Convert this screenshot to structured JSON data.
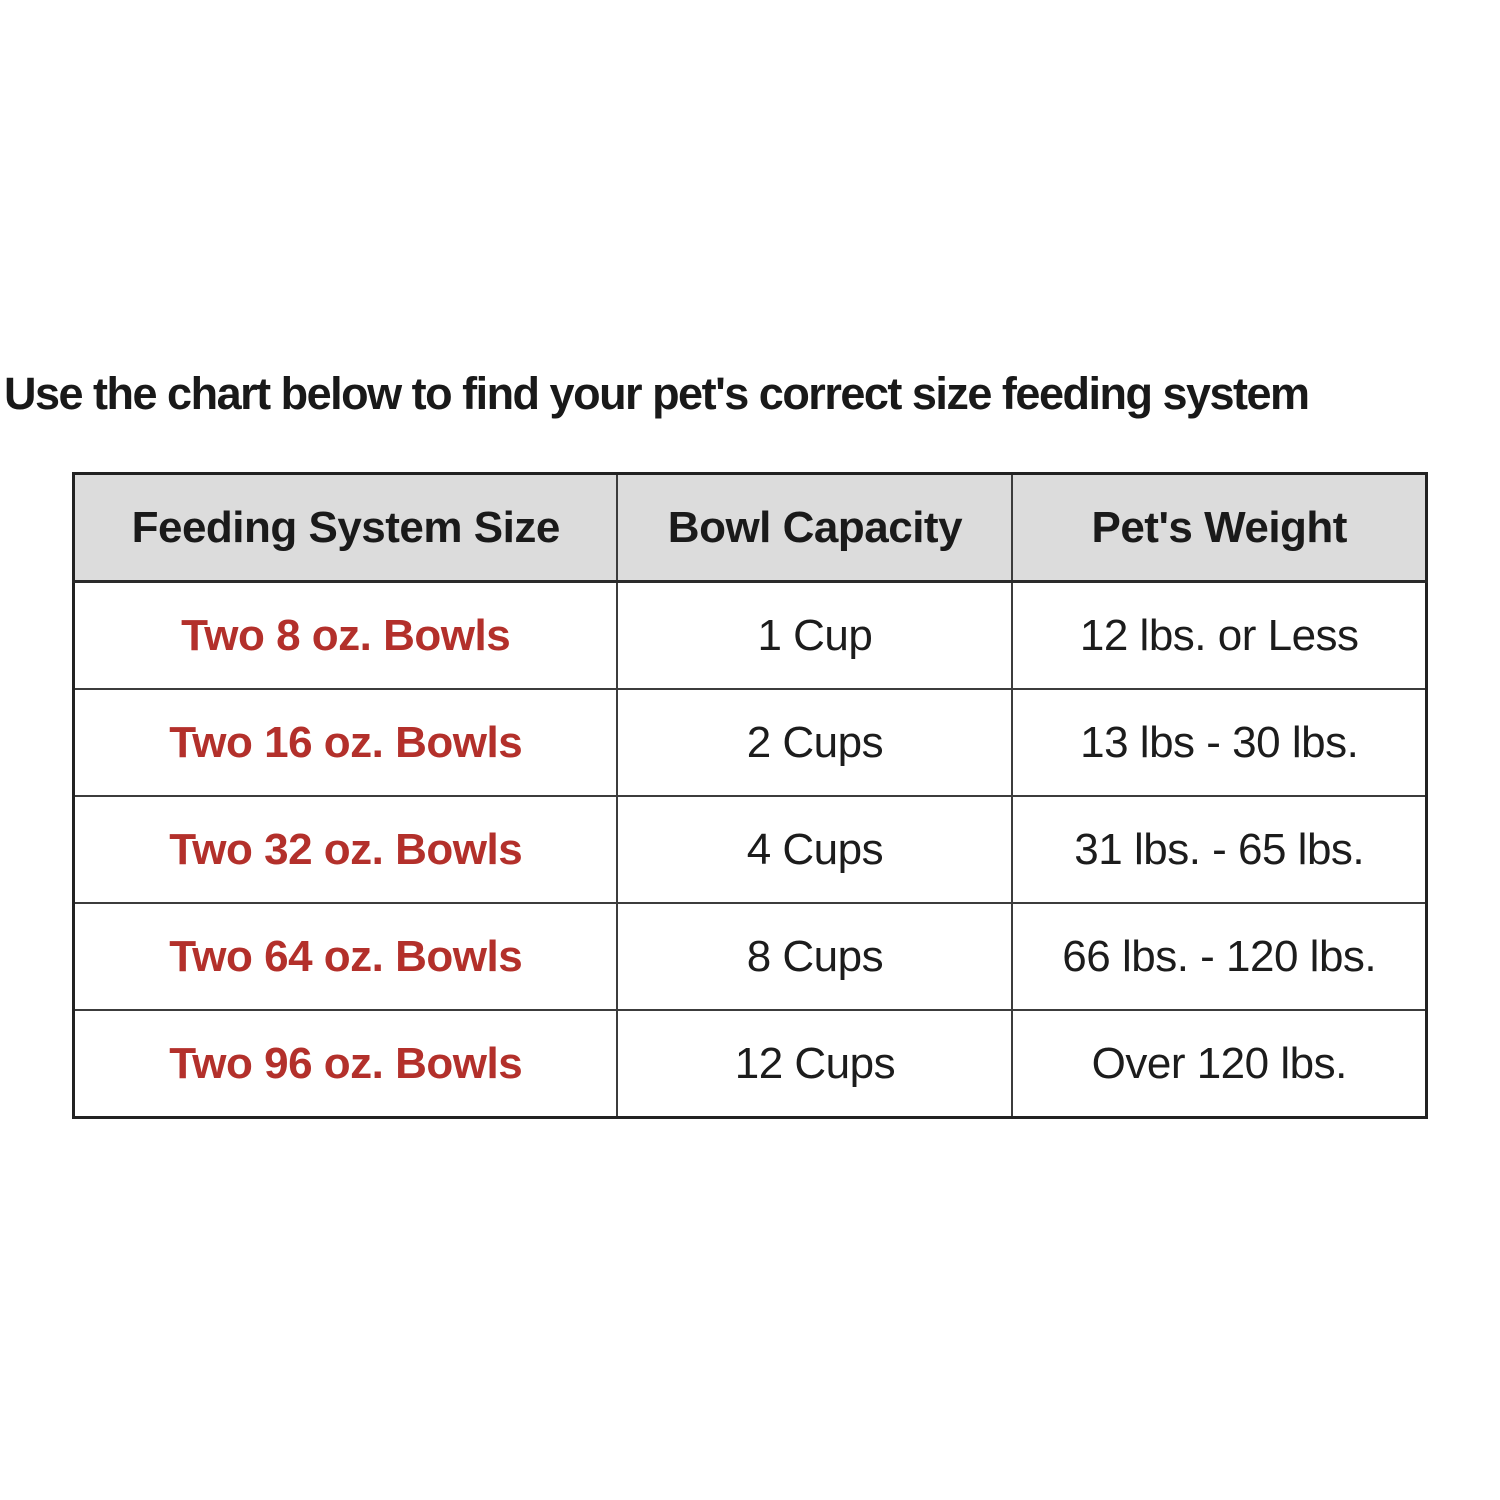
{
  "title": "Use the chart below to find your pet's correct size feeding system",
  "colors": {
    "accent_red": "#b3302b",
    "header_bg": "#dcdcdc",
    "border": "#3c3c3c",
    "text": "#1a1a1a",
    "background": "#ffffff"
  },
  "chart_data": {
    "type": "table",
    "title": "Use the chart below to find your pet's correct size feeding system",
    "columns": [
      "Feeding System Size",
      "Bowl Capacity",
      "Pet's Weight"
    ],
    "rows": [
      [
        "Two 8 oz. Bowls",
        "1 Cup",
        "12 lbs. or Less"
      ],
      [
        "Two 16 oz. Bowls",
        "2 Cups",
        "13 lbs - 30 lbs."
      ],
      [
        "Two 32 oz. Bowls",
        "4 Cups",
        "31 lbs. - 65 lbs."
      ],
      [
        "Two 64 oz. Bowls",
        "8 Cups",
        "66 lbs. - 120 lbs."
      ],
      [
        "Two 96 oz. Bowls",
        "12 Cups",
        "Over 120 lbs."
      ]
    ],
    "layout": {
      "header_background": "#dcdcdc",
      "first_column_color": "#b3302b",
      "grid": true,
      "text_align": "center"
    }
  }
}
